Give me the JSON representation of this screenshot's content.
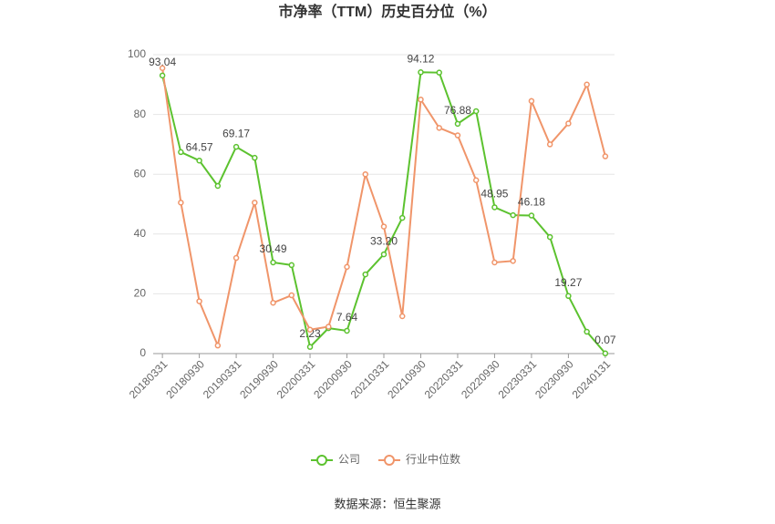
{
  "chart_data": {
    "type": "line",
    "title": "市净率（TTM）历史百分位（%）",
    "source": "数据来源：恒生聚源",
    "categories": [
      "20180331",
      null,
      "20180930",
      null,
      "20190331",
      null,
      "20190930",
      null,
      "20200331",
      null,
      "20200930",
      null,
      "20210331",
      null,
      "20210930",
      null,
      "20220331",
      null,
      "20220930",
      null,
      "20230331",
      null,
      "20230930",
      null,
      "20240131"
    ],
    "series": [
      {
        "name": "公司",
        "color": "#5cc22f",
        "values": [
          93.04,
          67.4,
          64.57,
          56.1,
          69.17,
          65.5,
          30.49,
          29.6,
          2.23,
          8.5,
          7.64,
          26.5,
          33.2,
          45.4,
          94.12,
          94,
          76.88,
          81.1,
          48.95,
          46.3,
          46.18,
          39,
          19.27,
          7.3,
          0.07
        ],
        "value_labels": [
          "93.04",
          null,
          "64.57",
          null,
          "69.17",
          null,
          "30.49",
          null,
          "2.23",
          null,
          "7.64",
          null,
          "33.20",
          null,
          "94.12",
          null,
          "76.88",
          null,
          "48.95",
          null,
          "46.18",
          null,
          "19.27",
          null,
          "0.07"
        ]
      },
      {
        "name": "行业中位数",
        "color": "#f0956a",
        "values": [
          95.5,
          50.5,
          17.5,
          2.7,
          32,
          50.5,
          17,
          19.5,
          8,
          9,
          29,
          60,
          42.5,
          12.5,
          85,
          75.5,
          73,
          58,
          30.5,
          31,
          84.5,
          70,
          77,
          90,
          66
        ]
      }
    ],
    "ylim": [
      0,
      100
    ],
    "yticks": [
      0,
      20,
      40,
      60,
      80,
      100
    ],
    "grid": true,
    "legend": "bottom"
  }
}
